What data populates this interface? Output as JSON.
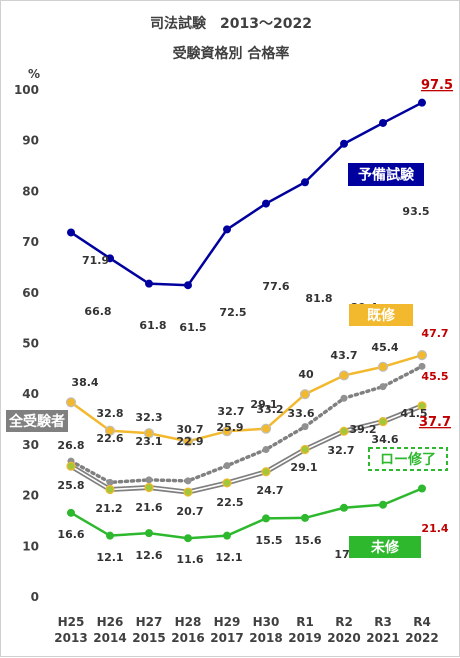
{
  "chart_data": {
    "type": "line",
    "title": "司法試験　2013〜2022",
    "subtitle": "受験資格別 合格率",
    "ylabel": "%",
    "ylim": [
      0,
      100
    ],
    "yticks": [
      "0",
      "10",
      "20",
      "30",
      "40",
      "50",
      "60",
      "70",
      "80",
      "90",
      "100"
    ],
    "x_era": [
      "H25",
      "H26",
      "H27",
      "H28",
      "H29",
      "H30",
      "R1",
      "R2",
      "R3",
      "R4"
    ],
    "x": [
      "2013",
      "2014",
      "2015",
      "2016",
      "2017",
      "2018",
      "2019",
      "2020",
      "2021",
      "2022"
    ],
    "grid": false,
    "series": [
      {
        "name": "予備試験",
        "color": "#00009e",
        "style": "solid",
        "values": [
          71.9,
          66.8,
          61.8,
          61.5,
          72.5,
          77.6,
          81.8,
          89.4,
          93.5,
          97.5
        ],
        "labels": [
          "71.9",
          "66.8",
          "61.8",
          "61.5",
          "72.5",
          "77.6",
          "81.8",
          "89.4",
          "93.5",
          "97.5"
        ]
      },
      {
        "name": "既修",
        "color": "#f2b92f",
        "style": "solid",
        "values": [
          38.4,
          32.8,
          32.3,
          30.7,
          32.7,
          33.2,
          40,
          43.7,
          45.4,
          47.7
        ],
        "labels": [
          "38.4",
          "32.8",
          "32.3",
          "30.7",
          "32.7",
          "33.2",
          "40",
          "43.7",
          "45.4",
          "47.7"
        ]
      },
      {
        "name": "全受験者",
        "color": "#808080",
        "style": "dotted",
        "values": [
          26.8,
          22.6,
          23.1,
          22.9,
          25.9,
          29.1,
          33.6,
          39.2,
          41.5,
          45.5
        ],
        "labels": [
          "26.8",
          "22.6",
          "23.1",
          "22.9",
          "25.9",
          "29.1",
          "33.6",
          "39.2",
          "41.5",
          "45.5"
        ]
      },
      {
        "name": "ロー修了",
        "color": "#7f7f7f",
        "style": "double",
        "values": [
          25.8,
          21.2,
          21.6,
          20.7,
          22.5,
          24.7,
          29.1,
          32.7,
          34.6,
          37.7
        ],
        "labels": [
          "25.8",
          "21.2",
          "21.6",
          "20.7",
          "22.5",
          "24.7",
          "29.1",
          "32.7",
          "34.6",
          "37.7"
        ]
      },
      {
        "name": "未修",
        "color": "#2db82d",
        "style": "solid",
        "values": [
          16.6,
          12.1,
          12.6,
          11.6,
          12.1,
          15.5,
          15.6,
          17.6,
          18.2,
          21.4
        ],
        "labels": [
          "16.6",
          "12.1",
          "12.6",
          "11.6",
          "12.1",
          "15.5",
          "15.6",
          "17.6",
          "18.2",
          "21.4"
        ]
      }
    ]
  }
}
